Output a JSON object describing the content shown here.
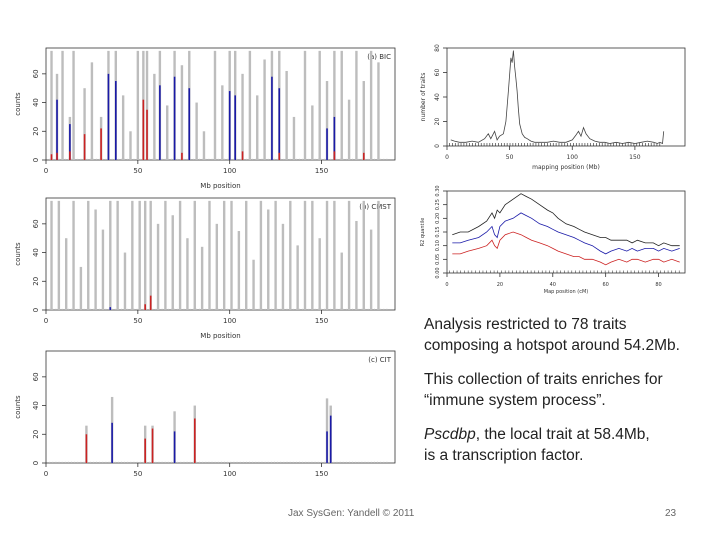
{
  "slide": {
    "footer_left": "Jax SysGen: Yandell © 2011",
    "page_number": "23"
  },
  "text": {
    "bullet1_line1": "Analysis restricted to 78 traits",
    "bullet1_line2": "composing a hotspot around 54.2Mb.",
    "bullet2_line1": "This collection of traits enriches for",
    "bullet2_line2": "“immune system process”.",
    "bullet3_gene": "Pscdbp",
    "bullet3_rest": ", the local trait at 58.4Mb,",
    "bullet3_line2": "is a transcription factor."
  },
  "colors": {
    "gray": "#bdbdbd",
    "blue": "#1a1aa8",
    "red": "#cc2222",
    "black": "#222222"
  },
  "chart_data": [
    {
      "id": "bic",
      "type": "bar",
      "panel_label": "(a) BIC",
      "xlabel": "Mb position",
      "ylabel": "counts",
      "xlim": [
        0,
        190
      ],
      "ylim": [
        0,
        78
      ],
      "xticks": [
        "0",
        "50",
        "100",
        "150"
      ],
      "xtick_values": [
        0,
        50,
        100,
        150
      ],
      "yticks": [
        "0",
        "20",
        "40",
        "60"
      ],
      "ytick_values": [
        0,
        20,
        40,
        60
      ],
      "bars": [
        {
          "x": 3,
          "gray": 76,
          "blue": 0,
          "red": 4
        },
        {
          "x": 6,
          "gray": 60,
          "blue": 42,
          "red": 5
        },
        {
          "x": 9,
          "gray": 76,
          "blue": 0,
          "red": 0
        },
        {
          "x": 13,
          "gray": 30,
          "blue": 25,
          "red": 6
        },
        {
          "x": 15,
          "gray": 76,
          "blue": 0,
          "red": 0
        },
        {
          "x": 21,
          "gray": 50,
          "blue": 0,
          "red": 18
        },
        {
          "x": 25,
          "gray": 68,
          "blue": 0,
          "red": 0
        },
        {
          "x": 30,
          "gray": 30,
          "blue": 0,
          "red": 22
        },
        {
          "x": 34,
          "gray": 76,
          "blue": 60,
          "red": 0
        },
        {
          "x": 38,
          "gray": 76,
          "blue": 55,
          "red": 0
        },
        {
          "x": 42,
          "gray": 45,
          "blue": 0,
          "red": 0
        },
        {
          "x": 46,
          "gray": 20,
          "blue": 0,
          "red": 0
        },
        {
          "x": 50,
          "gray": 76,
          "blue": 0,
          "red": 0
        },
        {
          "x": 53,
          "gray": 76,
          "blue": 0,
          "red": 42
        },
        {
          "x": 55,
          "gray": 76,
          "blue": 0,
          "red": 35
        },
        {
          "x": 59,
          "gray": 60,
          "blue": 0,
          "red": 0
        },
        {
          "x": 62,
          "gray": 76,
          "blue": 52,
          "red": 0
        },
        {
          "x": 66,
          "gray": 38,
          "blue": 0,
          "red": 0
        },
        {
          "x": 70,
          "gray": 76,
          "blue": 58,
          "red": 0
        },
        {
          "x": 74,
          "gray": 66,
          "blue": 0,
          "red": 5
        },
        {
          "x": 78,
          "gray": 76,
          "blue": 50,
          "red": 0
        },
        {
          "x": 82,
          "gray": 40,
          "blue": 0,
          "red": 0
        },
        {
          "x": 86,
          "gray": 20,
          "blue": 0,
          "red": 0
        },
        {
          "x": 92,
          "gray": 76,
          "blue": 0,
          "red": 0
        },
        {
          "x": 96,
          "gray": 52,
          "blue": 0,
          "red": 0
        },
        {
          "x": 100,
          "gray": 76,
          "blue": 48,
          "red": 0
        },
        {
          "x": 103,
          "gray": 76,
          "blue": 45,
          "red": 0
        },
        {
          "x": 107,
          "gray": 60,
          "blue": 0,
          "red": 6
        },
        {
          "x": 111,
          "gray": 76,
          "blue": 0,
          "red": 0
        },
        {
          "x": 115,
          "gray": 45,
          "blue": 0,
          "red": 0
        },
        {
          "x": 119,
          "gray": 70,
          "blue": 0,
          "red": 0
        },
        {
          "x": 123,
          "gray": 76,
          "blue": 58,
          "red": 0
        },
        {
          "x": 127,
          "gray": 76,
          "blue": 50,
          "red": 5
        },
        {
          "x": 131,
          "gray": 62,
          "blue": 0,
          "red": 0
        },
        {
          "x": 135,
          "gray": 30,
          "blue": 0,
          "red": 0
        },
        {
          "x": 141,
          "gray": 76,
          "blue": 0,
          "red": 0
        },
        {
          "x": 145,
          "gray": 38,
          "blue": 0,
          "red": 0
        },
        {
          "x": 149,
          "gray": 76,
          "blue": 0,
          "red": 0
        },
        {
          "x": 153,
          "gray": 55,
          "blue": 22,
          "red": 0
        },
        {
          "x": 157,
          "gray": 76,
          "blue": 30,
          "red": 6
        },
        {
          "x": 161,
          "gray": 76,
          "blue": 0,
          "red": 0
        },
        {
          "x": 165,
          "gray": 42,
          "blue": 0,
          "red": 0
        },
        {
          "x": 169,
          "gray": 76,
          "blue": 0,
          "red": 0
        },
        {
          "x": 173,
          "gray": 55,
          "blue": 0,
          "red": 5
        },
        {
          "x": 177,
          "gray": 76,
          "blue": 0,
          "red": 0
        },
        {
          "x": 181,
          "gray": 68,
          "blue": 0,
          "red": 0
        }
      ]
    },
    {
      "id": "cmst",
      "type": "bar",
      "panel_label": "(b) CMST",
      "xlabel": "Mb position",
      "ylabel": "counts",
      "xlim": [
        0,
        190
      ],
      "ylim": [
        0,
        78
      ],
      "xticks": [
        "0",
        "50",
        "100",
        "150"
      ],
      "xtick_values": [
        0,
        50,
        100,
        150
      ],
      "yticks": [
        "0",
        "20",
        "40",
        "60"
      ],
      "ytick_values": [
        0,
        20,
        40,
        60
      ],
      "bars": [
        {
          "x": 3,
          "gray": 76,
          "blue": 0,
          "red": 0
        },
        {
          "x": 7,
          "gray": 76,
          "blue": 0,
          "red": 0
        },
        {
          "x": 11,
          "gray": 50,
          "blue": 0,
          "red": 0
        },
        {
          "x": 15,
          "gray": 76,
          "blue": 0,
          "red": 0
        },
        {
          "x": 19,
          "gray": 30,
          "blue": 0,
          "red": 0
        },
        {
          "x": 23,
          "gray": 76,
          "blue": 0,
          "red": 0
        },
        {
          "x": 27,
          "gray": 70,
          "blue": 0,
          "red": 0
        },
        {
          "x": 31,
          "gray": 56,
          "blue": 0,
          "red": 0
        },
        {
          "x": 35,
          "gray": 76,
          "blue": 2,
          "red": 0
        },
        {
          "x": 39,
          "gray": 76,
          "blue": 0,
          "red": 0
        },
        {
          "x": 43,
          "gray": 40,
          "blue": 0,
          "red": 0
        },
        {
          "x": 47,
          "gray": 76,
          "blue": 0,
          "red": 0
        },
        {
          "x": 51,
          "gray": 76,
          "blue": 0,
          "red": 0
        },
        {
          "x": 54,
          "gray": 76,
          "blue": 0,
          "red": 4
        },
        {
          "x": 57,
          "gray": 76,
          "blue": 0,
          "red": 10
        },
        {
          "x": 61,
          "gray": 60,
          "blue": 0,
          "red": 0
        },
        {
          "x": 65,
          "gray": 76,
          "blue": 0,
          "red": 0
        },
        {
          "x": 69,
          "gray": 66,
          "blue": 0,
          "red": 0
        },
        {
          "x": 73,
          "gray": 76,
          "blue": 0,
          "red": 0
        },
        {
          "x": 77,
          "gray": 50,
          "blue": 0,
          "red": 0
        },
        {
          "x": 81,
          "gray": 76,
          "blue": 0,
          "red": 0
        },
        {
          "x": 85,
          "gray": 44,
          "blue": 0,
          "red": 0
        },
        {
          "x": 89,
          "gray": 76,
          "blue": 0,
          "red": 0
        },
        {
          "x": 93,
          "gray": 60,
          "blue": 0,
          "red": 0
        },
        {
          "x": 97,
          "gray": 76,
          "blue": 0,
          "red": 0
        },
        {
          "x": 101,
          "gray": 76,
          "blue": 0,
          "red": 0
        },
        {
          "x": 105,
          "gray": 55,
          "blue": 0,
          "red": 0
        },
        {
          "x": 109,
          "gray": 76,
          "blue": 0,
          "red": 0
        },
        {
          "x": 113,
          "gray": 35,
          "blue": 0,
          "red": 0
        },
        {
          "x": 117,
          "gray": 76,
          "blue": 0,
          "red": 0
        },
        {
          "x": 121,
          "gray": 70,
          "blue": 0,
          "red": 0
        },
        {
          "x": 125,
          "gray": 76,
          "blue": 0,
          "red": 0
        },
        {
          "x": 129,
          "gray": 60,
          "blue": 0,
          "red": 0
        },
        {
          "x": 133,
          "gray": 76,
          "blue": 0,
          "red": 0
        },
        {
          "x": 137,
          "gray": 45,
          "blue": 0,
          "red": 0
        },
        {
          "x": 141,
          "gray": 76,
          "blue": 0,
          "red": 0
        },
        {
          "x": 145,
          "gray": 76,
          "blue": 0,
          "red": 0
        },
        {
          "x": 149,
          "gray": 50,
          "blue": 0,
          "red": 0
        },
        {
          "x": 153,
          "gray": 76,
          "blue": 0,
          "red": 0
        },
        {
          "x": 157,
          "gray": 76,
          "blue": 0,
          "red": 0
        },
        {
          "x": 161,
          "gray": 40,
          "blue": 0,
          "red": 0
        },
        {
          "x": 165,
          "gray": 76,
          "blue": 0,
          "red": 0
        },
        {
          "x": 169,
          "gray": 62,
          "blue": 0,
          "red": 0
        },
        {
          "x": 173,
          "gray": 76,
          "blue": 0,
          "red": 0
        },
        {
          "x": 177,
          "gray": 56,
          "blue": 0,
          "red": 0
        },
        {
          "x": 181,
          "gray": 76,
          "blue": 0,
          "red": 0
        }
      ]
    },
    {
      "id": "cit",
      "type": "bar",
      "panel_label": "(c) CIT",
      "xlabel": "",
      "ylabel": "counts",
      "xlim": [
        0,
        190
      ],
      "ylim": [
        0,
        78
      ],
      "xticks": [
        "0",
        "50",
        "100",
        "150"
      ],
      "xtick_values": [
        0,
        50,
        100,
        150
      ],
      "yticks": [
        "0",
        "20",
        "40",
        "60"
      ],
      "ytick_values": [
        0,
        20,
        40,
        60
      ],
      "bars": [
        {
          "x": 22,
          "gray": 26,
          "blue": 0,
          "red": 20
        },
        {
          "x": 36,
          "gray": 46,
          "blue": 28,
          "red": 0
        },
        {
          "x": 54,
          "gray": 26,
          "blue": 0,
          "red": 17
        },
        {
          "x": 58,
          "gray": 26,
          "blue": 0,
          "red": 24
        },
        {
          "x": 70,
          "gray": 36,
          "blue": 22,
          "red": 0
        },
        {
          "x": 81,
          "gray": 40,
          "blue": 0,
          "red": 31
        },
        {
          "x": 153,
          "gray": 45,
          "blue": 22,
          "red": 0
        },
        {
          "x": 155,
          "gray": 40,
          "blue": 33,
          "red": 0
        }
      ]
    },
    {
      "id": "traits",
      "type": "line",
      "xlabel": "mapping position (Mb)",
      "ylabel": "number of traits",
      "xlim": [
        0,
        190
      ],
      "ylim": [
        0,
        80
      ],
      "xticks": [
        "0",
        "50",
        "100",
        "150"
      ],
      "xtick_values": [
        0,
        50,
        100,
        150
      ],
      "yticks": [
        "0",
        "20",
        "40",
        "60",
        "80"
      ],
      "ytick_values": [
        0,
        20,
        40,
        60,
        80
      ],
      "series": [
        {
          "name": "traits",
          "x": [
            3,
            6,
            10,
            15,
            20,
            25,
            30,
            33,
            35,
            38,
            40,
            42,
            45,
            47,
            49,
            50,
            51,
            52,
            53,
            54,
            55,
            56,
            57,
            58,
            60,
            62,
            64,
            67,
            70,
            75,
            80,
            85,
            90,
            95,
            100,
            103,
            105,
            107,
            109,
            111,
            114,
            118,
            122,
            126,
            130,
            135,
            140,
            145,
            150,
            155,
            160,
            165,
            168,
            170,
            172,
            173
          ],
          "y": [
            5,
            4,
            3,
            3,
            4,
            3,
            6,
            10,
            6,
            12,
            5,
            8,
            10,
            20,
            45,
            58,
            72,
            68,
            78,
            65,
            55,
            45,
            30,
            18,
            10,
            7,
            6,
            4,
            3,
            3,
            3,
            4,
            3,
            3,
            5,
            9,
            12,
            8,
            15,
            10,
            6,
            4,
            3,
            3,
            2,
            3,
            2,
            3,
            2,
            3,
            4,
            3,
            2,
            3,
            2,
            12
          ]
        }
      ]
    },
    {
      "id": "r2",
      "type": "line",
      "xlabel": "Map position (cM)",
      "ylabel": "R2 quantile",
      "xlim": [
        0,
        90
      ],
      "ylim": [
        0,
        0.3
      ],
      "xticks": [
        "0",
        "20",
        "40",
        "60",
        "80"
      ],
      "xtick_values": [
        0,
        20,
        40,
        60,
        80
      ],
      "yticks": [
        "0.00",
        "0.05",
        "0.10",
        "0.15",
        "0.20",
        "0.25",
        "0.30"
      ],
      "ytick_values": [
        0,
        0.05,
        0.1,
        0.15,
        0.2,
        0.25,
        0.3
      ],
      "series": [
        {
          "name": "upper",
          "color": "#222222",
          "x": [
            2,
            5,
            8,
            12,
            15,
            17,
            18,
            19,
            20,
            22,
            25,
            28,
            30,
            32,
            35,
            38,
            40,
            42,
            45,
            48,
            50,
            52,
            55,
            58,
            60,
            62,
            65,
            68,
            70,
            72,
            75,
            78,
            80,
            82,
            85,
            88
          ],
          "y": [
            0.14,
            0.15,
            0.15,
            0.17,
            0.19,
            0.22,
            0.2,
            0.23,
            0.22,
            0.25,
            0.27,
            0.29,
            0.28,
            0.27,
            0.25,
            0.23,
            0.22,
            0.2,
            0.18,
            0.17,
            0.16,
            0.15,
            0.14,
            0.13,
            0.13,
            0.12,
            0.12,
            0.12,
            0.11,
            0.12,
            0.11,
            0.11,
            0.1,
            0.11,
            0.1,
            0.1
          ]
        },
        {
          "name": "middle",
          "color": "#1a1aa8",
          "x": [
            2,
            5,
            8,
            12,
            15,
            17,
            18,
            19,
            20,
            22,
            25,
            28,
            30,
            32,
            35,
            38,
            40,
            42,
            45,
            48,
            50,
            52,
            55,
            58,
            60,
            62,
            65,
            68,
            70,
            72,
            75,
            78,
            80,
            82,
            85,
            88
          ],
          "y": [
            0.11,
            0.11,
            0.12,
            0.13,
            0.15,
            0.17,
            0.14,
            0.13,
            0.17,
            0.19,
            0.2,
            0.22,
            0.21,
            0.2,
            0.18,
            0.17,
            0.16,
            0.15,
            0.14,
            0.13,
            0.12,
            0.11,
            0.1,
            0.08,
            0.07,
            0.08,
            0.09,
            0.08,
            0.09,
            0.08,
            0.09,
            0.09,
            0.08,
            0.09,
            0.08,
            0.09
          ]
        },
        {
          "name": "lower",
          "color": "#cc2222",
          "x": [
            2,
            5,
            8,
            12,
            15,
            17,
            18,
            19,
            20,
            22,
            25,
            28,
            30,
            32,
            35,
            38,
            40,
            42,
            45,
            48,
            50,
            52,
            55,
            58,
            60,
            62,
            65,
            68,
            70,
            72,
            75,
            78,
            80,
            82,
            85,
            88
          ],
          "y": [
            0.07,
            0.07,
            0.08,
            0.09,
            0.1,
            0.12,
            0.1,
            0.09,
            0.12,
            0.14,
            0.15,
            0.14,
            0.13,
            0.12,
            0.11,
            0.1,
            0.09,
            0.08,
            0.07,
            0.06,
            0.06,
            0.05,
            0.05,
            0.04,
            0.03,
            0.04,
            0.05,
            0.04,
            0.05,
            0.05,
            0.04,
            0.05,
            0.05,
            0.04,
            0.05,
            0.04
          ]
        }
      ]
    }
  ]
}
